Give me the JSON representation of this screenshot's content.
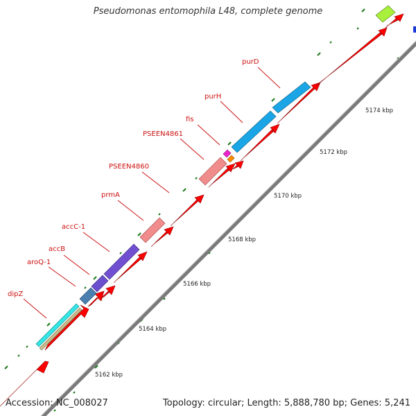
{
  "title": "Pseudomonas entomophila L48, complete genome",
  "footer": {
    "accession": "Accession: NC_008027",
    "summary": "Topology: circular; Length: 5,888,780 bp; Genes: 5,241"
  },
  "gene_labels": {
    "dipZ": "dipZ",
    "aroQ1": "aroQ-1",
    "accB": "accB",
    "accC1": "accC-1",
    "prmA": "prmA",
    "pseen4860": "PSEEN4860",
    "pseen4861": "PSEEN4861",
    "fis": "fis",
    "purH": "purH",
    "purD": "purD"
  },
  "ticks": {
    "k5162": "5162 kbp",
    "k5164": "5164 kbp",
    "k5166": "5166 kbp",
    "k5168": "5168 kbp",
    "k5170": "5170 kbp",
    "k5172": "5172 kbp",
    "k5174": "5174 kbp"
  },
  "colors": {
    "backbone": "#808080",
    "cds": "#ff0000",
    "tick": "#1a7a1a",
    "label": "#cc1111",
    "dipZ_cyan": "#33e6e6",
    "dipZ_tan": "#c8bc8c",
    "aroQ1": "#4a7fb0",
    "accB": "#6a4fcf",
    "accC1": "#7050d0",
    "prmA": "#f08c8c",
    "pseen4860": "#f08c8c",
    "fis_magenta": "#ee22cc",
    "fis_orange": "#ff8c00",
    "purH": "#1aa6e6",
    "purD": "#1aa6e6",
    "top_green": "#a8f03c",
    "edge_blue": "#1a3ad6"
  }
}
